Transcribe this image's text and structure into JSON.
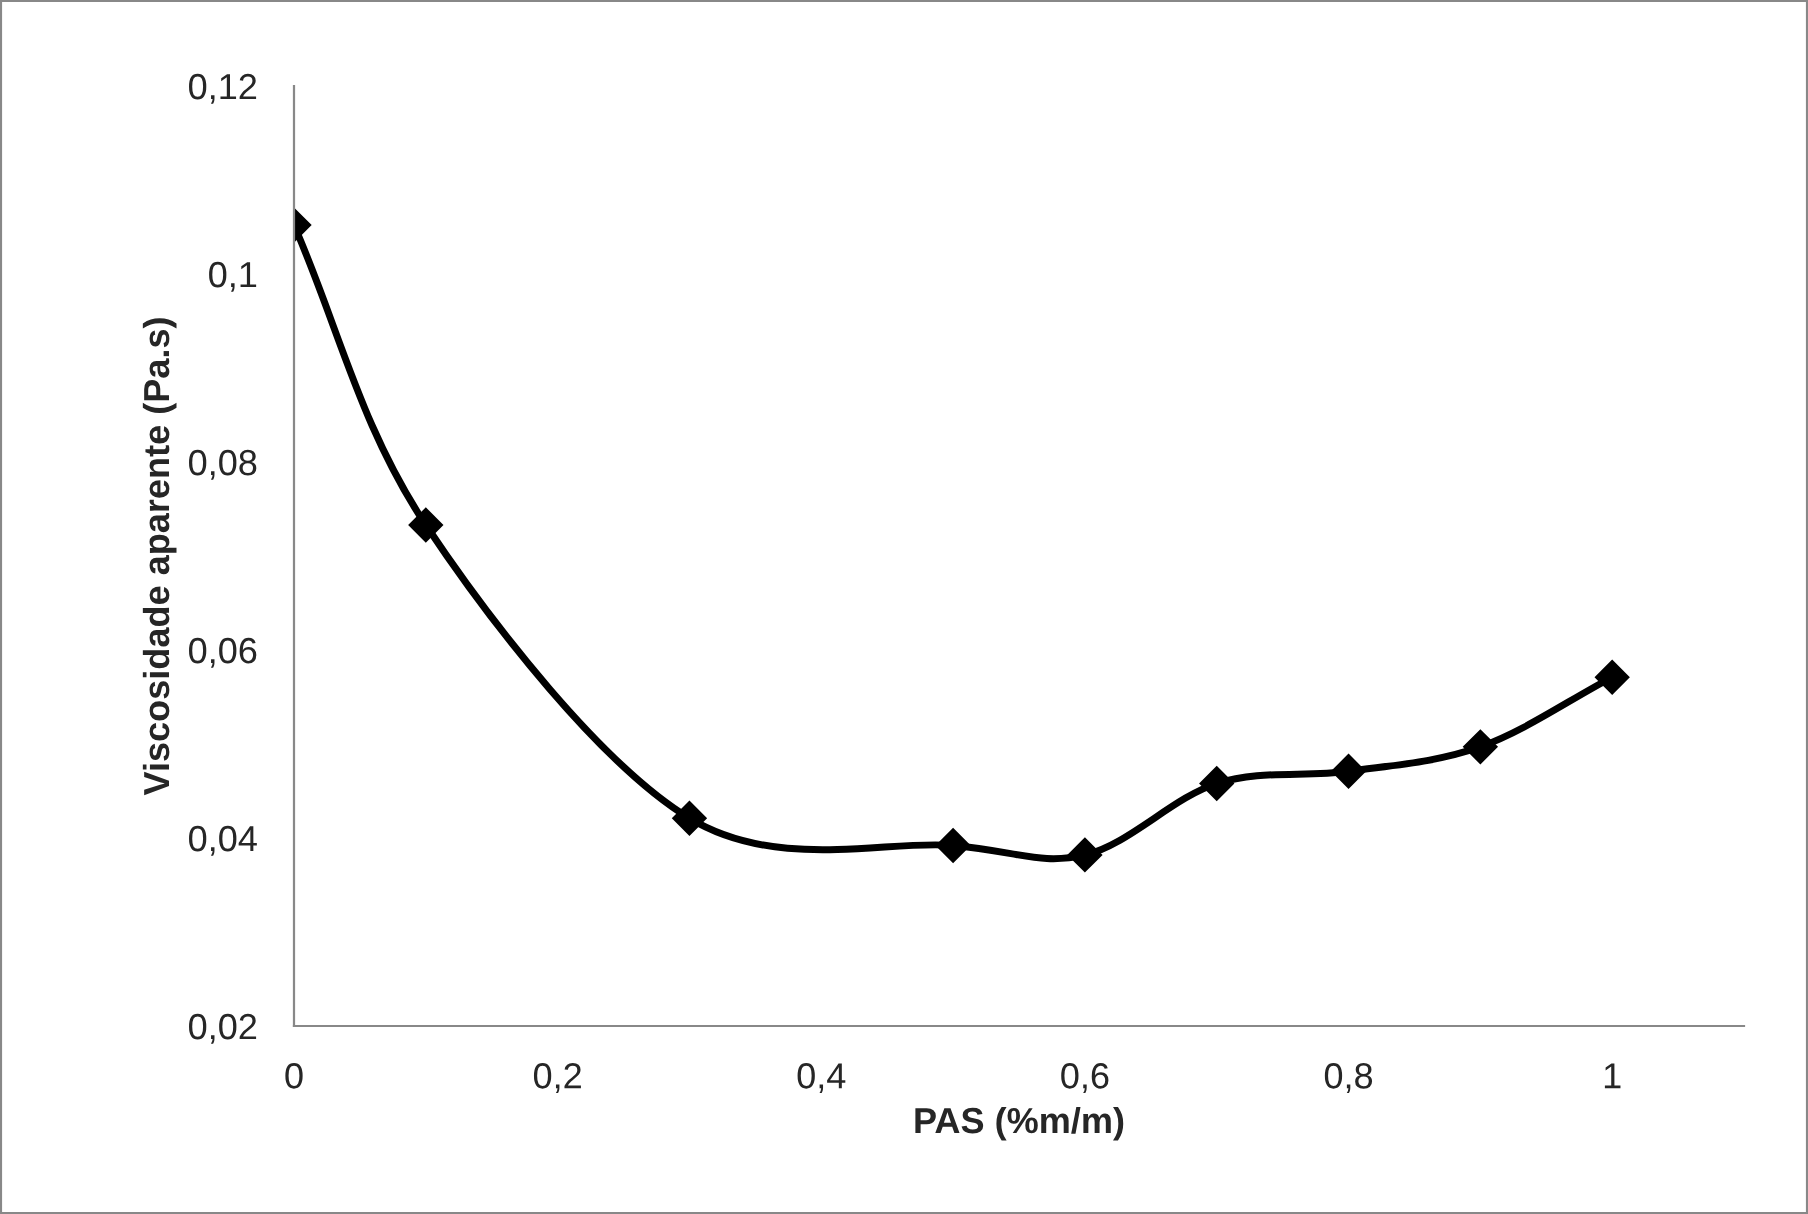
{
  "chart_data": {
    "type": "line",
    "xlabel": "PAS (%m/m)",
    "ylabel": "Viscosidade aparente (Pa.s)",
    "x": [
      0,
      0.1,
      0.3,
      0.5,
      0.6,
      0.7,
      0.8,
      0.9,
      1
    ],
    "series": [
      {
        "color": "#000000",
        "values": [
          0.1052,
          0.0733,
          0.0421,
          0.0392,
          0.0382,
          0.0458,
          0.0471,
          0.0497,
          0.0571
        ]
      }
    ],
    "xlim": [
      0,
      1.1
    ],
    "xticks": [
      {
        "value": 0,
        "label": "0"
      },
      {
        "value": 0.2,
        "label": "0,2"
      },
      {
        "value": 0.4,
        "label": "0,4"
      },
      {
        "value": 0.6,
        "label": "0,6"
      },
      {
        "value": 0.8,
        "label": "0,8"
      },
      {
        "value": 1,
        "label": "1"
      }
    ],
    "ylim": [
      0.02,
      0.12
    ],
    "yticks": [
      {
        "value": 0.02,
        "label": "0,02"
      },
      {
        "value": 0.04,
        "label": "0,04"
      },
      {
        "value": 0.06,
        "label": "0,06"
      },
      {
        "value": 0.08,
        "label": "0,08"
      },
      {
        "value": 0.1,
        "label": "0,1"
      },
      {
        "value": 0.12,
        "label": "0,12"
      }
    ],
    "marker": "diamond",
    "line_style": "solid",
    "grid": false,
    "legend": false
  }
}
